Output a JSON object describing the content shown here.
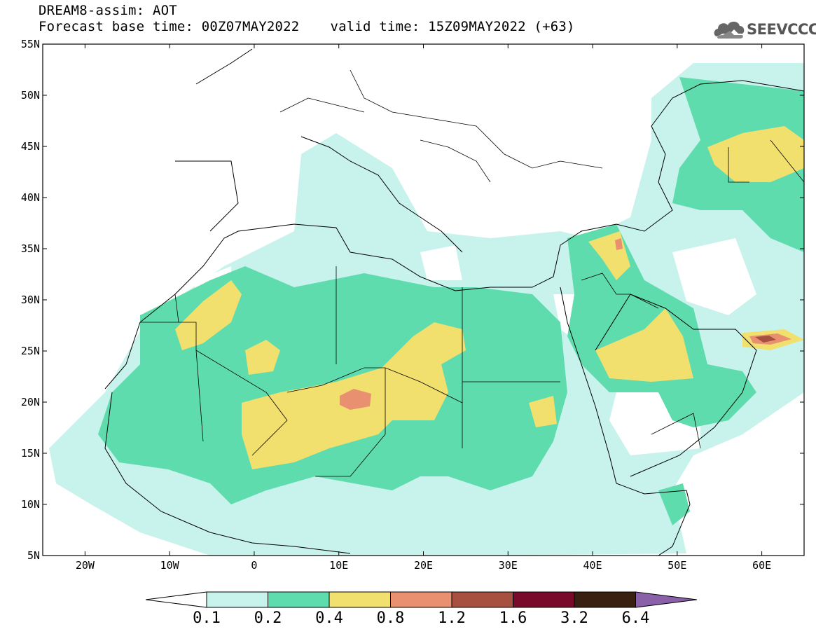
{
  "header": {
    "line1": "DREAM8-assim: AOT",
    "base_time": "Forecast base time: 00Z07MAY2022",
    "valid_time": "valid time: 15Z09MAY2022 (+63)"
  },
  "logo": {
    "text": "SEEVCCC",
    "icon": "cloud-logo-icon"
  },
  "map": {
    "variable": "AOT",
    "lon_range": [
      -25,
      65
    ],
    "lat_range": [
      5,
      55
    ],
    "lat_ticks": [
      "55N",
      "50N",
      "45N",
      "40N",
      "35N",
      "30N",
      "25N",
      "20N",
      "15N",
      "10N",
      "5N"
    ],
    "lon_ticks": [
      "20W",
      "10W",
      "0",
      "10E",
      "20E",
      "30E",
      "40E",
      "50E",
      "60E"
    ]
  },
  "colorbar": {
    "levels": [
      "0.1",
      "0.2",
      "0.4",
      "0.8",
      "1.2",
      "1.6",
      "3.2",
      "6.4"
    ],
    "colors": [
      "#c8f2ec",
      "#5fdcae",
      "#f2e06e",
      "#e89070",
      "#a85040",
      "#7a0a2a",
      "#3a2010",
      "#8a60a8"
    ],
    "under_color": "#ffffff"
  }
}
